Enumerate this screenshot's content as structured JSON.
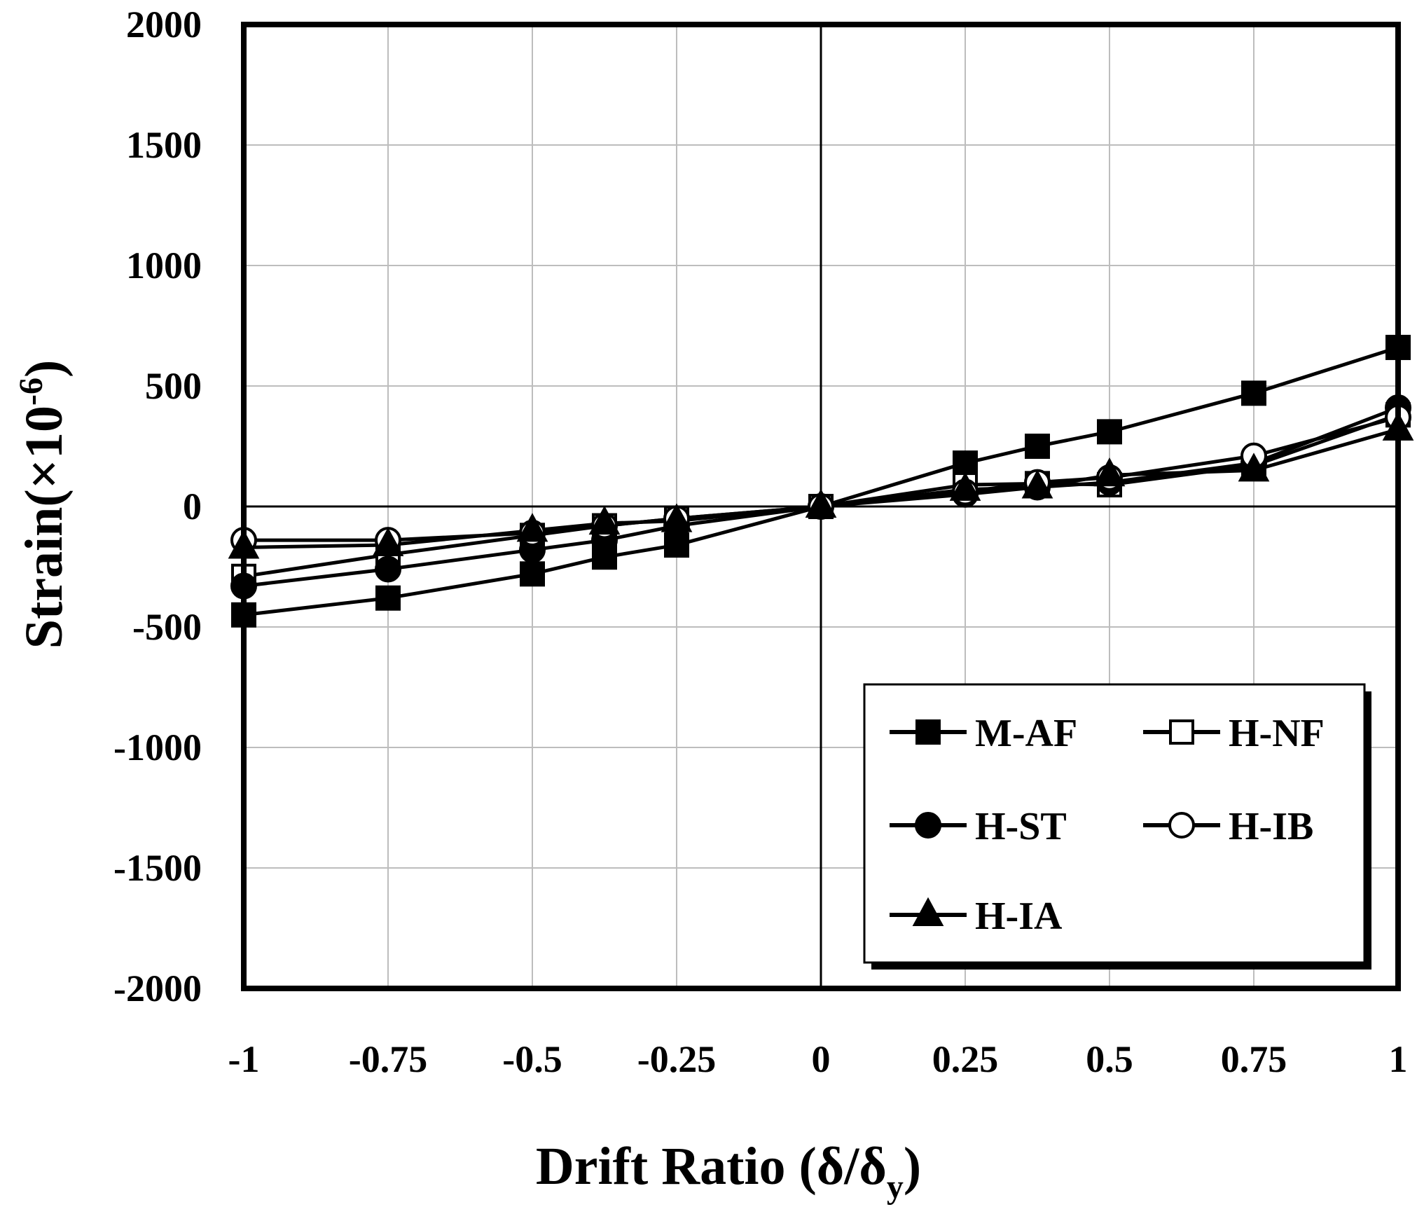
{
  "chart_data": {
    "type": "line",
    "title": "",
    "xlabel": {
      "main": "Drift Ratio (δ/δ",
      "subscript": "y",
      "tail": ")"
    },
    "ylabel": {
      "main": "Strain(×10",
      "superscript": "-6",
      "tail": ")"
    },
    "xlim": [
      -1,
      1
    ],
    "ylim": [
      -2000,
      2000
    ],
    "xticks": [
      -1,
      -0.75,
      -0.5,
      -0.25,
      0,
      0.25,
      0.5,
      0.75,
      1
    ],
    "xtick_labels": [
      "-1",
      "-0.75",
      "-0.5",
      "-0.25",
      "0",
      "0.25",
      "0.5",
      "0.75",
      "1"
    ],
    "yticks": [
      2000,
      1500,
      1000,
      500,
      0,
      -500,
      -1000,
      -1500,
      -2000
    ],
    "ytick_labels": [
      "2000",
      "1500",
      "1000",
      "500",
      "0",
      "-500",
      "-1000",
      "-1500",
      "-2000"
    ],
    "grid": true,
    "legend_position": "bottom-right",
    "x": [
      -1,
      -0.75,
      -0.5,
      -0.375,
      -0.25,
      0,
      0.25,
      0.375,
      0.5,
      0.75,
      1
    ],
    "series": [
      {
        "name": "M-AF",
        "marker": "square-filled",
        "values": [
          -450,
          -380,
          -280,
          -210,
          -160,
          0,
          180,
          250,
          310,
          470,
          660
        ]
      },
      {
        "name": "H-NF",
        "marker": "square-open",
        "values": [
          -290,
          -200,
          -120,
          -80,
          -50,
          0,
          90,
          95,
          90,
          170,
          380
        ]
      },
      {
        "name": "H-ST",
        "marker": "circle-filled",
        "values": [
          -330,
          -260,
          -180,
          -140,
          -80,
          0,
          50,
          80,
          100,
          180,
          410
        ]
      },
      {
        "name": "H-IB",
        "marker": "circle-open",
        "values": [
          -140,
          -140,
          -110,
          -80,
          -50,
          0,
          60,
          100,
          120,
          210,
          370
        ]
      },
      {
        "name": "H-IA",
        "marker": "triangle-filled",
        "values": [
          -170,
          -160,
          -100,
          -70,
          -60,
          0,
          70,
          80,
          130,
          150,
          320
        ]
      }
    ]
  }
}
